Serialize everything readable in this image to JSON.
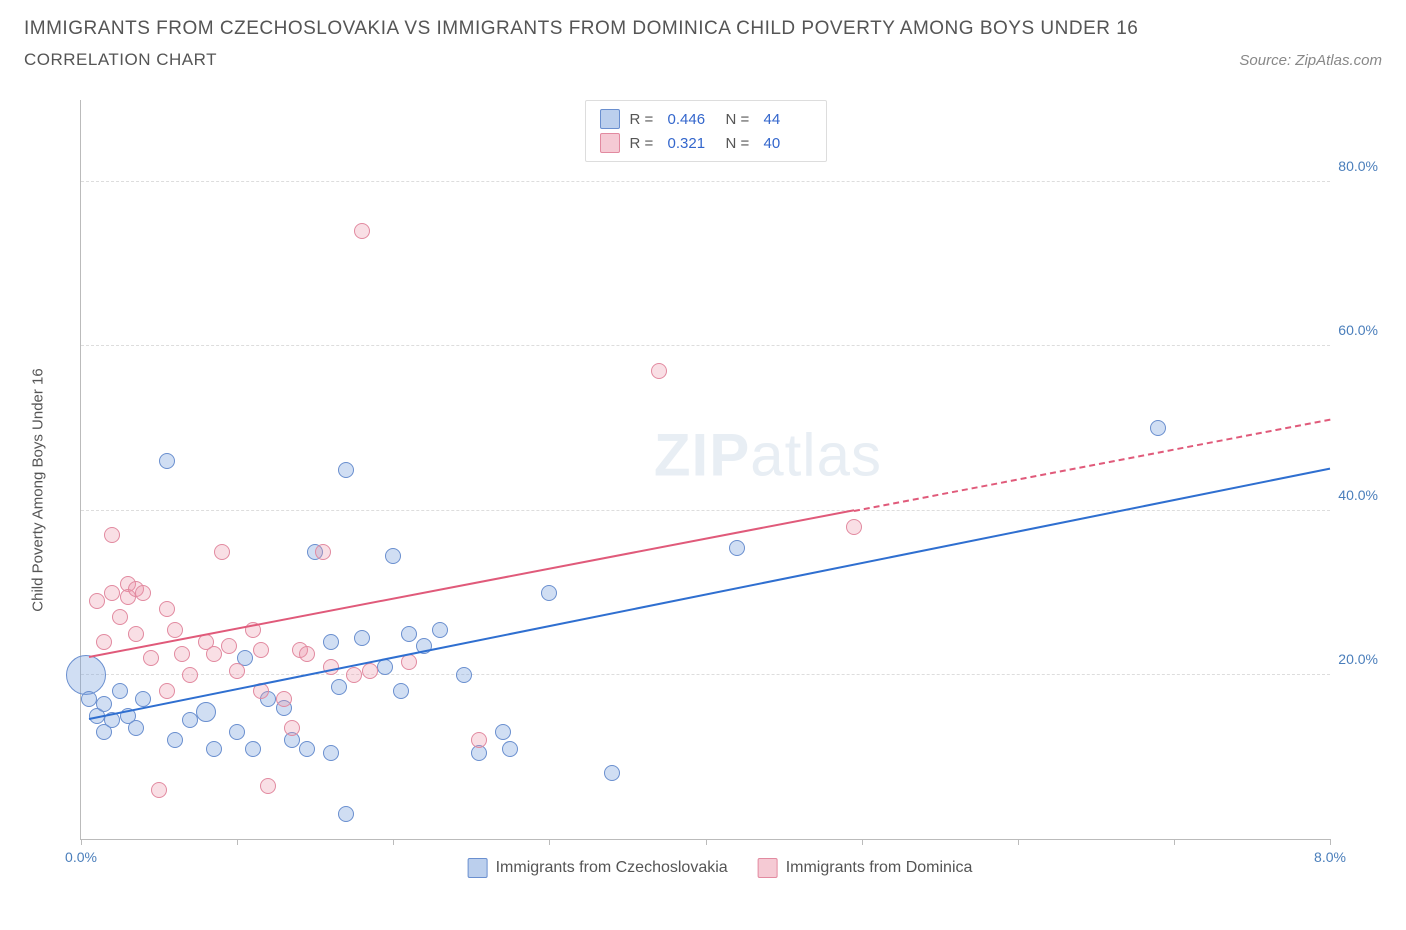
{
  "header": {
    "title": "IMMIGRANTS FROM CZECHOSLOVAKIA VS IMMIGRANTS FROM DOMINICA CHILD POVERTY AMONG BOYS UNDER 16",
    "subtitle": "CORRELATION CHART",
    "source_prefix": "Source: ",
    "source_name": "ZipAtlas.com"
  },
  "chart": {
    "type": "scatter-correlation",
    "background_color": "#ffffff",
    "grid_color": "#dddddd",
    "axis_color": "#bbbbbb",
    "yaxis_label": "Child Poverty Among Boys Under 16",
    "xlim": [
      0,
      8
    ],
    "ylim": [
      0,
      90
    ],
    "xtick_positions": [
      0,
      1,
      2,
      3,
      4,
      5,
      6,
      7,
      8
    ],
    "xtick_labels": {
      "0": "0.0%",
      "8": "8.0%"
    },
    "ytick_positions": [
      20,
      40,
      60,
      80
    ],
    "ytick_labels": {
      "20": "20.0%",
      "40": "40.0%",
      "60": "60.0%",
      "80": "80.0%"
    },
    "watermark": "ZIPatlas",
    "series": [
      {
        "id": "czech",
        "label": "Immigrants from Czechoslovakia",
        "fill": "rgba(120,160,220,0.35)",
        "stroke": "#6a8fcf",
        "swatch_fill": "rgba(120,160,220,0.5)",
        "swatch_border": "#6a8fcf",
        "R": "0.446",
        "N": "44",
        "trend": {
          "x1": 0.05,
          "y1": 14.5,
          "x2": 8.0,
          "y2": 45.0,
          "color": "#2f6fd0",
          "dash_from_x": null
        },
        "points": [
          {
            "x": 0.03,
            "y": 20,
            "r": 20
          },
          {
            "x": 0.05,
            "y": 17,
            "r": 8
          },
          {
            "x": 0.1,
            "y": 15,
            "r": 8
          },
          {
            "x": 0.15,
            "y": 13,
            "r": 8
          },
          {
            "x": 0.15,
            "y": 16.5,
            "r": 8
          },
          {
            "x": 0.2,
            "y": 14.5,
            "r": 8
          },
          {
            "x": 0.25,
            "y": 18,
            "r": 8
          },
          {
            "x": 0.3,
            "y": 15,
            "r": 8
          },
          {
            "x": 0.35,
            "y": 13.5,
            "r": 8
          },
          {
            "x": 0.4,
            "y": 17,
            "r": 8
          },
          {
            "x": 0.55,
            "y": 46,
            "r": 8
          },
          {
            "x": 0.6,
            "y": 12,
            "r": 8
          },
          {
            "x": 0.7,
            "y": 14.5,
            "r": 8
          },
          {
            "x": 0.8,
            "y": 15.5,
            "r": 10
          },
          {
            "x": 0.85,
            "y": 11,
            "r": 8
          },
          {
            "x": 1.0,
            "y": 13,
            "r": 8
          },
          {
            "x": 1.05,
            "y": 22,
            "r": 8
          },
          {
            "x": 1.1,
            "y": 11,
            "r": 8
          },
          {
            "x": 1.2,
            "y": 17,
            "r": 8
          },
          {
            "x": 1.3,
            "y": 16,
            "r": 8
          },
          {
            "x": 1.35,
            "y": 12,
            "r": 8
          },
          {
            "x": 1.45,
            "y": 11,
            "r": 8
          },
          {
            "x": 1.5,
            "y": 35,
            "r": 8
          },
          {
            "x": 1.6,
            "y": 24,
            "r": 8
          },
          {
            "x": 1.6,
            "y": 10.5,
            "r": 8
          },
          {
            "x": 1.65,
            "y": 18.5,
            "r": 8
          },
          {
            "x": 1.7,
            "y": 3,
            "r": 8
          },
          {
            "x": 1.7,
            "y": 45,
            "r": 8
          },
          {
            "x": 1.8,
            "y": 24.5,
            "r": 8
          },
          {
            "x": 1.95,
            "y": 21,
            "r": 8
          },
          {
            "x": 2.0,
            "y": 34.5,
            "r": 8
          },
          {
            "x": 2.05,
            "y": 18,
            "r": 8
          },
          {
            "x": 2.1,
            "y": 25,
            "r": 8
          },
          {
            "x": 2.2,
            "y": 23.5,
            "r": 8
          },
          {
            "x": 2.3,
            "y": 25.5,
            "r": 8
          },
          {
            "x": 2.45,
            "y": 20,
            "r": 8
          },
          {
            "x": 2.55,
            "y": 10.5,
            "r": 8
          },
          {
            "x": 2.7,
            "y": 13,
            "r": 8
          },
          {
            "x": 2.75,
            "y": 11,
            "r": 8
          },
          {
            "x": 3.0,
            "y": 30,
            "r": 8
          },
          {
            "x": 3.4,
            "y": 8,
            "r": 8
          },
          {
            "x": 4.2,
            "y": 35.5,
            "r": 8
          },
          {
            "x": 6.9,
            "y": 50,
            "r": 8
          }
        ]
      },
      {
        "id": "dominica",
        "label": "Immigrants from Dominica",
        "fill": "rgba(235,150,170,0.30)",
        "stroke": "#e28aa0",
        "swatch_fill": "rgba(235,150,170,0.5)",
        "swatch_border": "#e28aa0",
        "R": "0.321",
        "N": "40",
        "trend": {
          "x1": 0.05,
          "y1": 22.0,
          "x2": 8.0,
          "y2": 51.0,
          "color": "#e05a7a",
          "dash_from_x": 4.95
        },
        "points": [
          {
            "x": 0.1,
            "y": 29,
            "r": 8
          },
          {
            "x": 0.15,
            "y": 24,
            "r": 8
          },
          {
            "x": 0.2,
            "y": 37,
            "r": 8
          },
          {
            "x": 0.2,
            "y": 30,
            "r": 8
          },
          {
            "x": 0.25,
            "y": 27,
            "r": 8
          },
          {
            "x": 0.3,
            "y": 31,
            "r": 8
          },
          {
            "x": 0.3,
            "y": 29.5,
            "r": 8
          },
          {
            "x": 0.35,
            "y": 30.5,
            "r": 8
          },
          {
            "x": 0.35,
            "y": 25,
            "r": 8
          },
          {
            "x": 0.4,
            "y": 30,
            "r": 8
          },
          {
            "x": 0.45,
            "y": 22,
            "r": 8
          },
          {
            "x": 0.5,
            "y": 6,
            "r": 8
          },
          {
            "x": 0.55,
            "y": 28,
            "r": 8
          },
          {
            "x": 0.55,
            "y": 18,
            "r": 8
          },
          {
            "x": 0.6,
            "y": 25.5,
            "r": 8
          },
          {
            "x": 0.65,
            "y": 22.5,
            "r": 8
          },
          {
            "x": 0.7,
            "y": 20,
            "r": 8
          },
          {
            "x": 0.8,
            "y": 24,
            "r": 8
          },
          {
            "x": 0.85,
            "y": 22.5,
            "r": 8
          },
          {
            "x": 0.9,
            "y": 35,
            "r": 8
          },
          {
            "x": 0.95,
            "y": 23.5,
            "r": 8
          },
          {
            "x": 1.0,
            "y": 20.5,
            "r": 8
          },
          {
            "x": 1.1,
            "y": 25.5,
            "r": 8
          },
          {
            "x": 1.15,
            "y": 23,
            "r": 8
          },
          {
            "x": 1.15,
            "y": 18,
            "r": 8
          },
          {
            "x": 1.2,
            "y": 6.5,
            "r": 8
          },
          {
            "x": 1.3,
            "y": 17,
            "r": 8
          },
          {
            "x": 1.4,
            "y": 23,
            "r": 8
          },
          {
            "x": 1.35,
            "y": 13.5,
            "r": 8
          },
          {
            "x": 1.45,
            "y": 22.5,
            "r": 8
          },
          {
            "x": 1.55,
            "y": 35,
            "r": 8
          },
          {
            "x": 1.6,
            "y": 21,
            "r": 8
          },
          {
            "x": 1.75,
            "y": 20,
            "r": 8
          },
          {
            "x": 1.8,
            "y": 74,
            "r": 8
          },
          {
            "x": 1.85,
            "y": 20.5,
            "r": 8
          },
          {
            "x": 2.1,
            "y": 21.5,
            "r": 8
          },
          {
            "x": 2.55,
            "y": 12,
            "r": 8
          },
          {
            "x": 3.7,
            "y": 57,
            "r": 8
          },
          {
            "x": 4.95,
            "y": 38,
            "r": 8
          }
        ]
      }
    ]
  },
  "legend_top": {
    "r_label": "R =",
    "n_label": "N ="
  }
}
